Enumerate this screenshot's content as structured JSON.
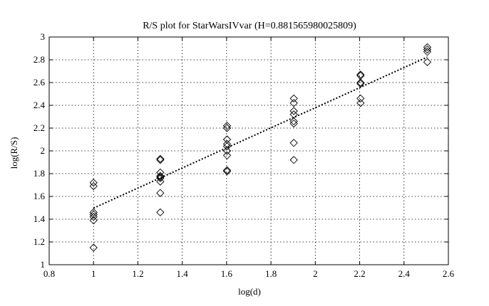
{
  "chart_data": {
    "type": "scatter",
    "title": "R/S plot for StarWarsIVvar (H=0.881565980025809)",
    "xlabel": "log(d)",
    "ylabel": "log(R/S)",
    "xlim": [
      0.8,
      2.6
    ],
    "ylim": [
      1,
      3
    ],
    "xticks": [
      "0.8",
      "1",
      "1.2",
      "1.4",
      "1.6",
      "1.8",
      "2",
      "2.2",
      "2.4",
      "2.6"
    ],
    "yticks": [
      "1",
      "1.2",
      "1.4",
      "1.6",
      "1.8",
      "2",
      "2.2",
      "2.4",
      "2.6",
      "2.8",
      "3"
    ],
    "grid": true,
    "marker": "diamond",
    "points": [
      [
        1.0,
        1.72
      ],
      [
        1.0,
        1.69
      ],
      [
        1.0,
        1.46
      ],
      [
        1.0,
        1.44
      ],
      [
        1.0,
        1.42
      ],
      [
        1.0,
        1.39
      ],
      [
        1.0,
        1.15
      ],
      [
        1.301,
        1.93
      ],
      [
        1.301,
        1.92
      ],
      [
        1.301,
        1.81
      ],
      [
        1.301,
        1.78
      ],
      [
        1.301,
        1.77
      ],
      [
        1.301,
        1.76
      ],
      [
        1.301,
        1.73
      ],
      [
        1.301,
        1.63
      ],
      [
        1.301,
        1.46
      ],
      [
        1.602,
        2.22
      ],
      [
        1.602,
        2.2
      ],
      [
        1.602,
        2.1
      ],
      [
        1.602,
        2.06
      ],
      [
        1.602,
        2.04
      ],
      [
        1.602,
        2.0
      ],
      [
        1.602,
        1.96
      ],
      [
        1.602,
        1.83
      ],
      [
        1.602,
        1.82
      ],
      [
        1.903,
        2.46
      ],
      [
        1.903,
        2.42
      ],
      [
        1.903,
        2.35
      ],
      [
        1.903,
        2.32
      ],
      [
        1.903,
        2.26
      ],
      [
        1.903,
        2.24
      ],
      [
        1.903,
        2.07
      ],
      [
        1.903,
        1.92
      ],
      [
        2.204,
        2.67
      ],
      [
        2.204,
        2.66
      ],
      [
        2.204,
        2.6
      ],
      [
        2.204,
        2.59
      ],
      [
        2.204,
        2.46
      ],
      [
        2.204,
        2.42
      ],
      [
        2.505,
        2.91
      ],
      [
        2.505,
        2.89
      ],
      [
        2.505,
        2.87
      ],
      [
        2.505,
        2.78
      ]
    ],
    "fit_line": {
      "x": [
        1.0,
        2.505
      ],
      "y": [
        1.497,
        2.824
      ]
    }
  }
}
